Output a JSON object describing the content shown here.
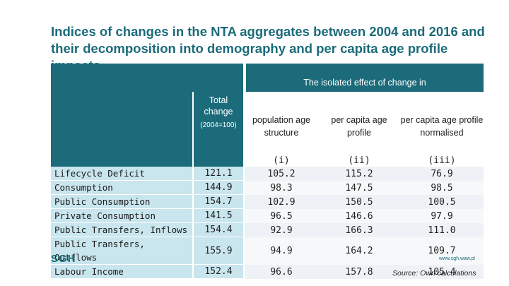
{
  "title": "Indices of changes in the NTA aggregates between 2004 and 2016 and their decomposition into demography and per capita age profile impacts",
  "table": {
    "header_isolated": "The isolated effect of change in",
    "header_total": "Total change",
    "header_total_sub": "(2004=100)",
    "header_population": "population age structure",
    "header_per_capita": "per capita age profile",
    "header_normalised": "per capita age profile normalised",
    "roman": [
      "(i)",
      "(ii)",
      "(iii)"
    ],
    "rows": [
      {
        "label": "Lifecycle Deficit",
        "total": "121.1",
        "pop": "105.2",
        "pc": "115.2",
        "norm": "76.9"
      },
      {
        "label": "Consumption",
        "total": "144.9",
        "pop": "98.3",
        "pc": "147.5",
        "norm": "98.5"
      },
      {
        "label": "Public Consumption",
        "total": "154.7",
        "pop": "102.9",
        "pc": "150.5",
        "norm": "100.5"
      },
      {
        "label": "Private Consumption",
        "total": "141.5",
        "pop": "96.5",
        "pc": "146.6",
        "norm": "97.9"
      },
      {
        "label": "Public Transfers, Inflows",
        "total": "154.4",
        "pop": "92.9",
        "pc": "166.3",
        "norm": "111.0"
      },
      {
        "label": "Public Transfers, Outflows",
        "total": "155.9",
        "pop": "94.9",
        "pc": "164.2",
        "norm": "109.7"
      },
      {
        "label": "Labour Income",
        "total": "152.4",
        "pop": "96.6",
        "pc": "157.8",
        "norm": "105.4"
      }
    ]
  },
  "footer": {
    "logo": "SGH",
    "website": "www.sgh.waw.pl",
    "source": "Source: Own calculations"
  }
}
